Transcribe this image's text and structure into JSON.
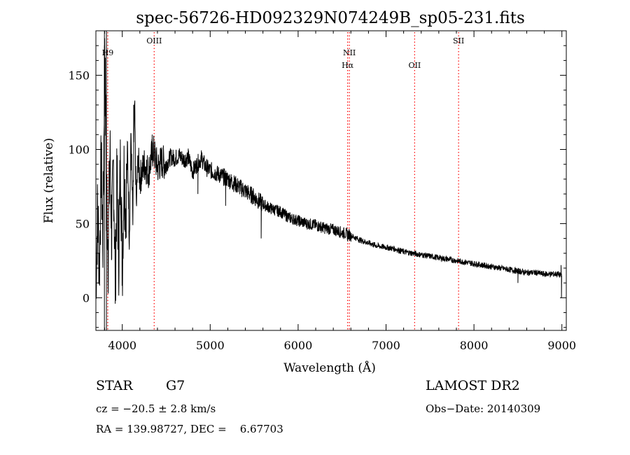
{
  "chart_data": {
    "type": "line",
    "title": "spec-56726-HD092329N074249B_sp05-231.fits",
    "xlabel": "Wavelength (Å)",
    "ylabel": "Flux (relative)",
    "xlim": [
      3700,
      9050
    ],
    "ylim": [
      -22,
      180
    ],
    "x_ticks": [
      4000,
      5000,
      6000,
      7000,
      8000,
      9000
    ],
    "y_ticks": [
      0,
      50,
      100,
      150
    ],
    "grid": false,
    "series": [
      {
        "name": "flux",
        "anchors": {
          "x": [
            3700,
            3720,
            3740,
            3760,
            3780,
            3800,
            3820,
            3840,
            3860,
            3880,
            3900,
            3920,
            3940,
            3960,
            3980,
            4000,
            4020,
            4040,
            4060,
            4080,
            4100,
            4120,
            4140,
            4160,
            4180,
            4200,
            4250,
            4300,
            4350,
            4400,
            4450,
            4500,
            4550,
            4600,
            4650,
            4700,
            4750,
            4800,
            4850,
            4900,
            4950,
            5000,
            5100,
            5200,
            5300,
            5400,
            5500,
            5600,
            5700,
            5800,
            5900,
            6000,
            6100,
            6200,
            6300,
            6400,
            6500,
            6560,
            6600,
            6700,
            6800,
            6900,
            7000,
            7100,
            7200,
            7300,
            7400,
            7500,
            7600,
            7700,
            7800,
            7900,
            8000,
            8100,
            8200,
            8300,
            8400,
            8500,
            8600,
            8700,
            8800,
            8900,
            8960,
            8980,
            9000
          ],
          "y": [
            10,
            60,
            20,
            90,
            40,
            170,
            80,
            30,
            100,
            40,
            90,
            10,
            80,
            30,
            95,
            20,
            85,
            60,
            100,
            40,
            110,
            50,
            130,
            60,
            95,
            80,
            90,
            85,
            100,
            88,
            92,
            90,
            95,
            94,
            96,
            93,
            95,
            85,
            90,
            94,
            88,
            86,
            83,
            80,
            76,
            72,
            68,
            63,
            60,
            58,
            54,
            52,
            50,
            49,
            47,
            46,
            44,
            43,
            42,
            39,
            37,
            35,
            34,
            33,
            31,
            30,
            29,
            28,
            27,
            26,
            25,
            24,
            23,
            22,
            21,
            20,
            19,
            18,
            17,
            17,
            16,
            16,
            16,
            15,
            15
          ]
        },
        "noise_levels": [
          {
            "x_min": 3700,
            "x_max": 4050,
            "amplitude": 30
          },
          {
            "x_min": 4050,
            "x_max": 4500,
            "amplitude": 12
          },
          {
            "x_min": 4500,
            "x_max": 5600,
            "amplitude": 6
          },
          {
            "x_min": 5600,
            "x_max": 6600,
            "amplitude": 4
          },
          {
            "x_min": 6600,
            "x_max": 9000,
            "amplitude": 2
          }
        ],
        "features": [
          {
            "x": 3800,
            "y": 175
          },
          {
            "x": 3818,
            "y": 45
          },
          {
            "x": 4130,
            "y": 130
          },
          {
            "x": 4340,
            "y": 110
          },
          {
            "x": 4860,
            "y": 70
          },
          {
            "x": 5175,
            "y": 62
          },
          {
            "x": 5580,
            "y": 40
          },
          {
            "x": 6563,
            "y": 38
          },
          {
            "x": 8500,
            "y": 10
          },
          {
            "x": 8990,
            "y": 22
          },
          {
            "x": 8995,
            "y": 0
          }
        ]
      }
    ],
    "lines": [
      {
        "label": "H9",
        "x": 3835,
        "label_rows": [
          1
        ]
      },
      {
        "label": "OIII",
        "x": 4363,
        "label_rows": [
          0
        ]
      },
      {
        "label": "NII",
        "x": 6583,
        "label_rows": [
          1
        ]
      },
      {
        "label": "Hα",
        "x": 6563,
        "label_rows": [
          2
        ]
      },
      {
        "label": "OII",
        "x": 7325,
        "label_rows": [
          2
        ]
      },
      {
        "label": "SII",
        "x": 7825,
        "label_rows": [
          0
        ]
      }
    ],
    "extra_lines": [
      {
        "x": 3797,
        "color": "#000000",
        "style": "solid"
      },
      {
        "x": 3820,
        "color": "#000000",
        "style": "solid"
      }
    ],
    "colors": {
      "spectrum": "#000000",
      "axes": "#000000",
      "line_marker": "#ff0000"
    }
  },
  "info": {
    "class_label": "STAR",
    "subclass": "G7",
    "survey": "LAMOST DR2",
    "cz": "cz = −20.5 ± 2.8 km/s",
    "obs_date": "Obs−Date: 20140309",
    "coords": "RA = 139.98727, DEC =    6.67703"
  }
}
